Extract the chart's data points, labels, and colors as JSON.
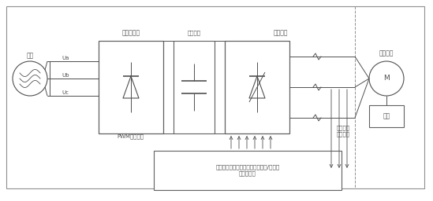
{
  "dc": "#505050",
  "tc": "#505050",
  "label_dianwang": "电网",
  "label_ua": "Ua",
  "label_ub": "Ub",
  "label_uc": "Uc",
  "label_zhengliuqiao": "整流桥电路",
  "label_nibianunit": "逆变单元",
  "label_muxian": "母线电容",
  "label_PWM": "PWM控制信号",
  "label_dianjidianlu": "电机电流\n采样信号",
  "label_kongzhi": "控制单元（包括磁链控制器和转矩/转矩电\n流控制器）",
  "label_zhuixing": "锥形电机",
  "label_fuzai": "负载",
  "label_M": "M",
  "figw": 5.49,
  "figh": 2.56,
  "dpi": 100
}
